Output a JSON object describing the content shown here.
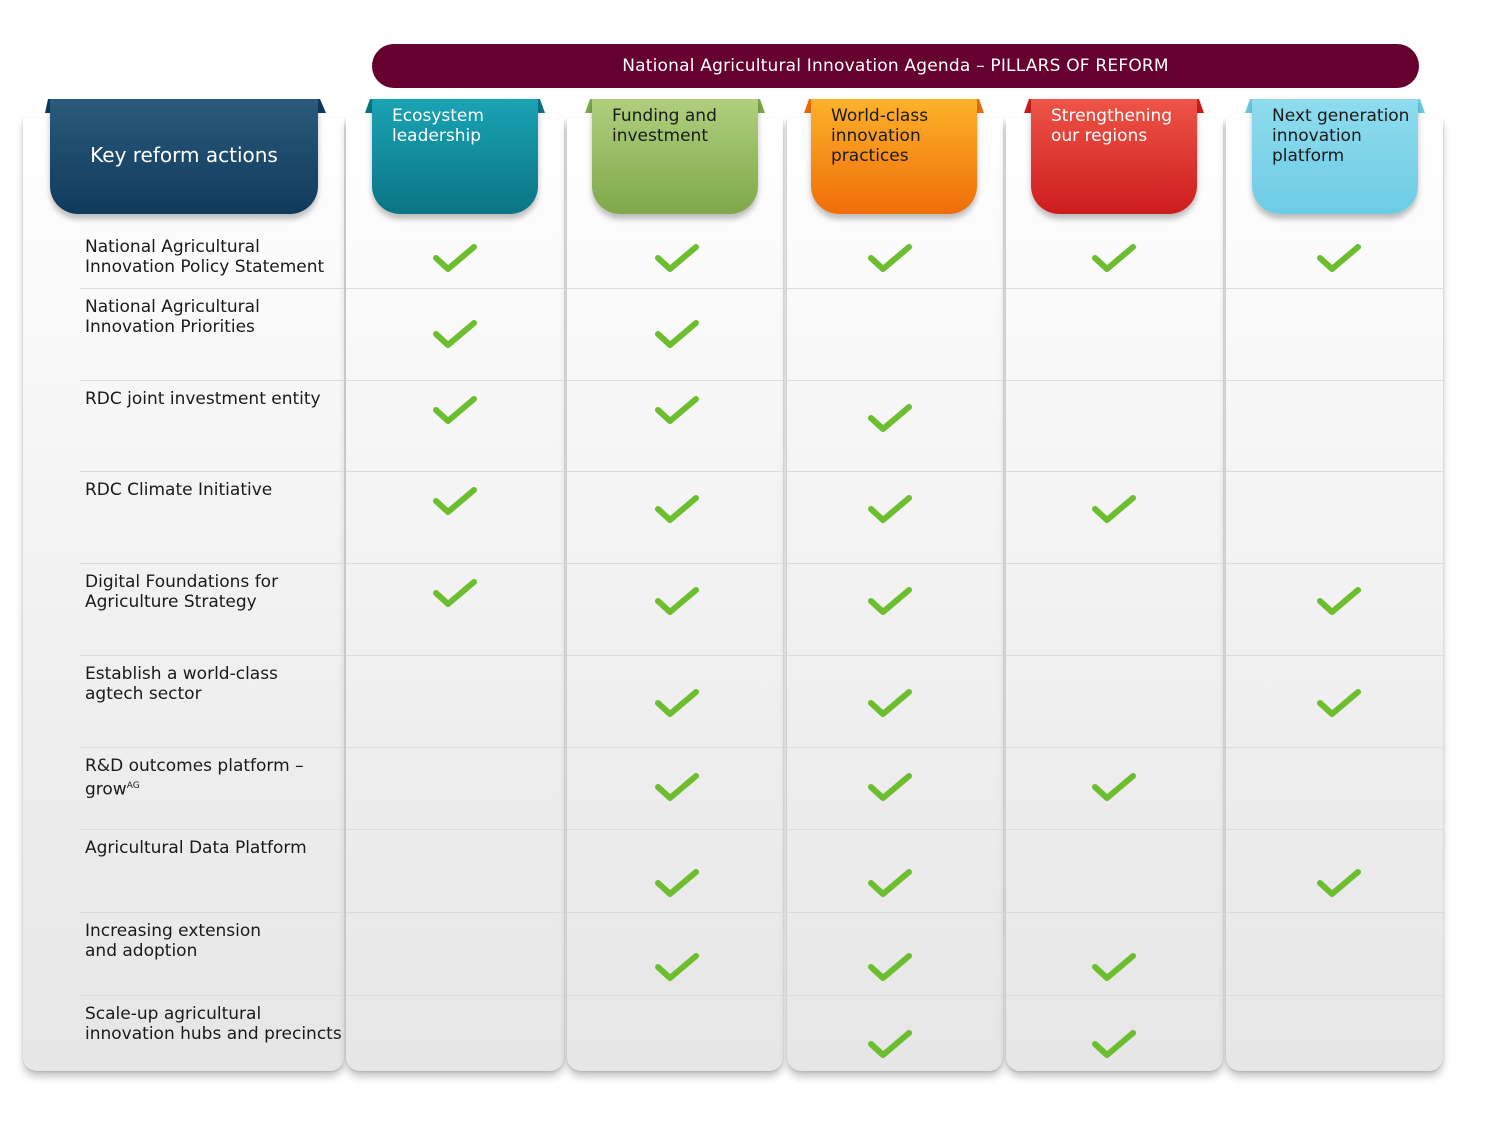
{
  "banner": "National Agricultural Innovation Agenda – PILLARS OF REFORM",
  "key_header": "Key reform actions",
  "pillars": [
    {
      "label": "Ecosystem\nleadership",
      "color_top": "#1aa3b4",
      "color_bottom": "#0a7584",
      "text_color": "#ffffff"
    },
    {
      "label": "Funding and\ninvestment",
      "color_top": "#b0cf7e",
      "color_bottom": "#7ea84a",
      "text_color": "#1a1a1a"
    },
    {
      "label": "World-class\ninnovation\npractices",
      "color_top": "#fdb22a",
      "color_bottom": "#ef6d08",
      "text_color": "#1a1a1a"
    },
    {
      "label": "Strengthening\nour regions",
      "color_top": "#ee5447",
      "color_bottom": "#cc1d1d",
      "text_color": "#ffffff"
    },
    {
      "label": "Next generation\ninnovation\nplatform",
      "color_top": "#8fdcee",
      "color_bottom": "#6dcce3",
      "text_color": "#1a1a1a"
    }
  ],
  "key_header_colors": {
    "top": "#2a5a7c",
    "bottom": "#103a5c"
  },
  "check_color": "#6dbe2e",
  "rows": [
    {
      "label": "National Agricultural\nInnovation Policy Statement",
      "checks": [
        true,
        true,
        true,
        true,
        true
      ]
    },
    {
      "label": "National Agricultural\nInnovation Priorities",
      "checks": [
        true,
        true,
        false,
        false,
        false
      ]
    },
    {
      "label": "RDC joint investment entity",
      "checks": [
        true,
        true,
        true,
        false,
        false
      ]
    },
    {
      "label": " RDC Climate Initiative",
      "checks": [
        true,
        true,
        true,
        true,
        false
      ]
    },
    {
      "label": "Digital Foundations for\nAgriculture Strategy",
      "checks": [
        true,
        true,
        true,
        false,
        true
      ]
    },
    {
      "label": "Establish a world-class\nagtech sector",
      "checks": [
        false,
        true,
        true,
        false,
        true
      ]
    },
    {
      "label": "R&D outcomes platform –\ngrow",
      "sup": "AG",
      "checks": [
        false,
        true,
        true,
        true,
        false
      ]
    },
    {
      "label": " Agricultural Data Platform",
      "checks": [
        false,
        true,
        true,
        false,
        true
      ]
    },
    {
      "label": "Increasing extension\nand adoption",
      "checks": [
        false,
        true,
        true,
        true,
        false
      ]
    },
    {
      "label": "Scale-up agricultural\ninnovation hubs and precincts",
      "checks": [
        false,
        false,
        true,
        true,
        false
      ]
    }
  ]
}
